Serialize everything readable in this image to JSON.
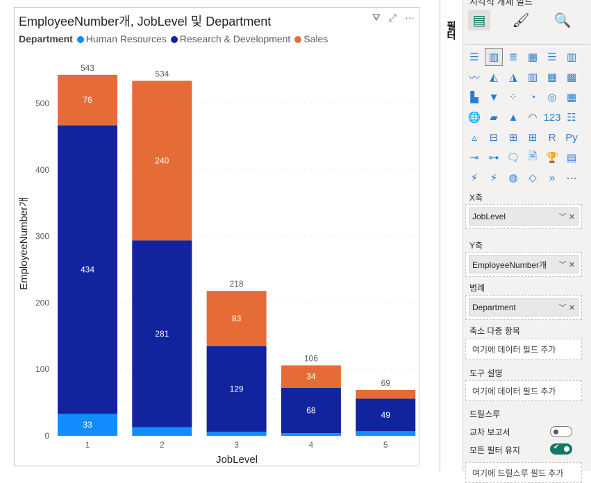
{
  "visual": {
    "title": "EmployeeNumber개, JobLevel 및 Department",
    "actions": [
      "filter-icon",
      "focus-mode-icon",
      "more-options-icon"
    ],
    "legend_title": "Department"
  },
  "chart_data": {
    "type": "bar",
    "stacked": true,
    "title": "EmployeeNumber개, JobLevel 및 Department",
    "xlabel": "JobLevel",
    "ylabel": "EmployeeNumber개",
    "categories": [
      "1",
      "2",
      "3",
      "4",
      "5"
    ],
    "ylim": [
      0,
      560
    ],
    "yticks": [
      0,
      100,
      200,
      300,
      400,
      500
    ],
    "legend_position": "top-left",
    "series": [
      {
        "name": "Human Resources",
        "color": "#118dff",
        "values": [
          33,
          13,
          6,
          4,
          7
        ],
        "labels": [
          "33",
          "",
          "",
          "",
          ""
        ]
      },
      {
        "name": "Research & Development",
        "color": "#12239e",
        "values": [
          434,
          281,
          129,
          68,
          49
        ],
        "labels": [
          "434",
          "281",
          "129",
          "68",
          "49"
        ]
      },
      {
        "name": "Sales",
        "color": "#e66c37",
        "values": [
          76,
          240,
          83,
          34,
          13
        ],
        "labels": [
          "76",
          "240",
          "83",
          "34",
          ""
        ]
      }
    ],
    "totals": [
      "543",
      "534",
      "218",
      "106",
      "69"
    ]
  },
  "pane": {
    "title": "시각적 개체 빌드",
    "strip_label": "필터",
    "x_axis_label": "X축",
    "x_axis_field": "JobLevel",
    "y_axis_label": "Y축",
    "y_axis_field": "EmployeeNumber개",
    "legend_label": "범례",
    "legend_field": "Department",
    "small_multiples_label": "축소 다중 항목",
    "small_multiples_placeholder": "여기에 데이터 필드 추가",
    "tooltips_label": "도구 설명",
    "tooltips_placeholder": "여기에 데이터 필드 추가",
    "drillthrough_label": "드릴스루",
    "cross_report_label": "교차 보고서",
    "cross_report_on": false,
    "keep_filters_label": "모든 필터 유지",
    "keep_filters_on": true,
    "drillthrough_placeholder": "여기에 드릴스루 필드 추가",
    "gallery_more": "···"
  }
}
